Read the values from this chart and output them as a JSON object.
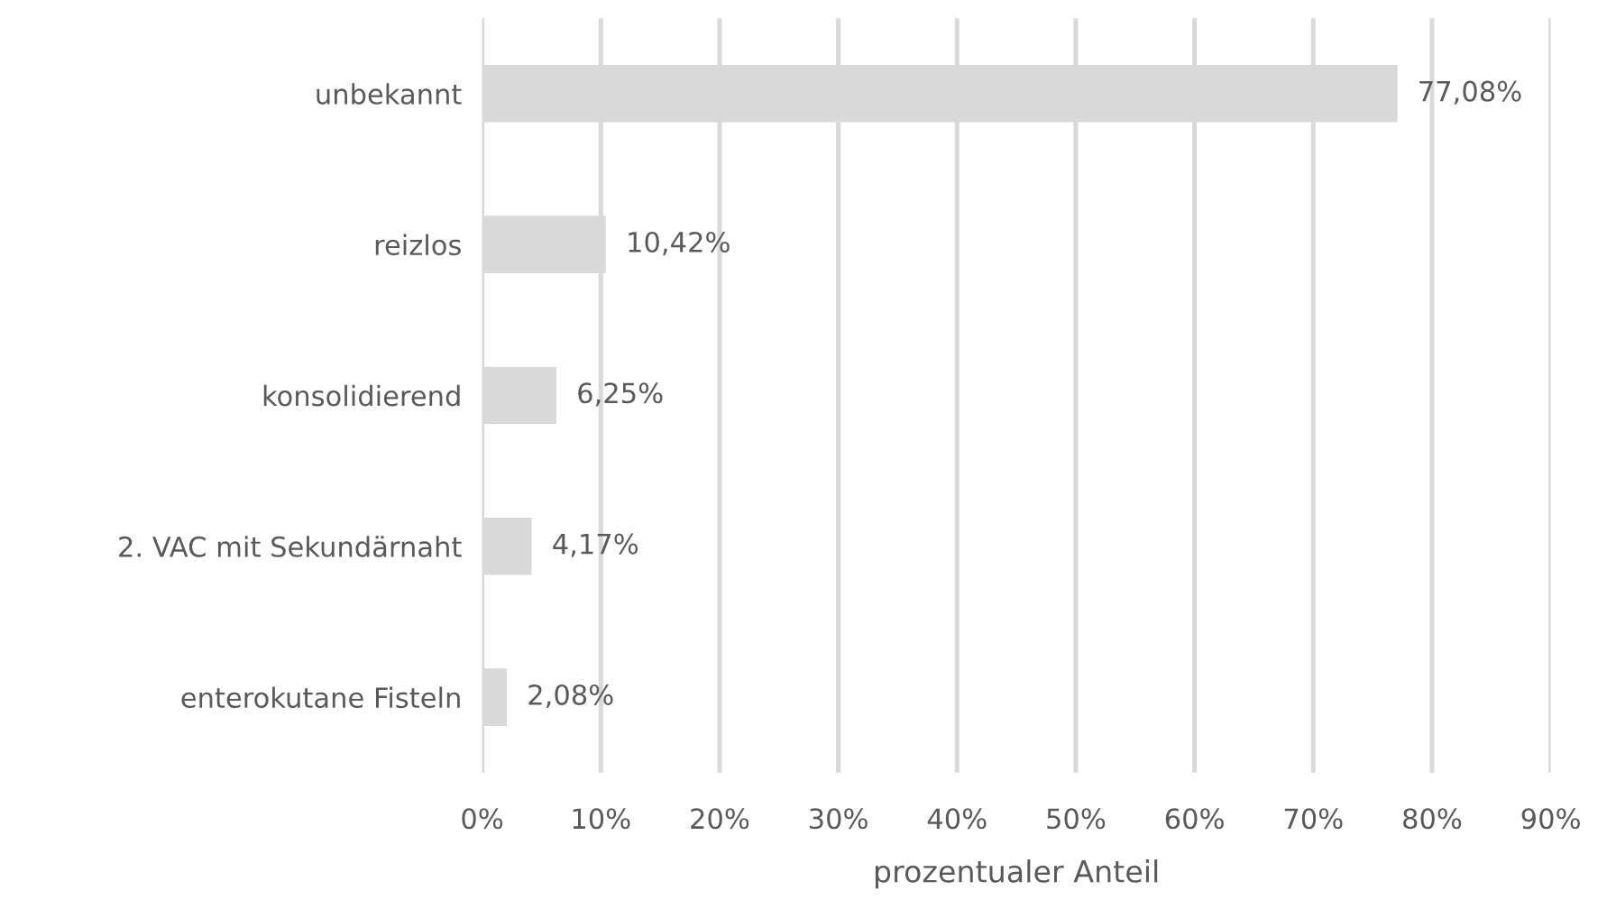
{
  "chart_data": {
    "type": "bar",
    "orientation": "horizontal",
    "xlabel": "prozentualer Anteil",
    "categories": [
      "unbekannt",
      "reizlos",
      "konsolidierend",
      "2. VAC mit Sekundärnaht",
      "enterokutane Fisteln"
    ],
    "values": [
      77.08,
      10.42,
      6.25,
      4.17,
      2.08
    ],
    "value_labels": [
      "77,08%",
      "10,42%",
      "6,25%",
      "4,17%",
      "2,08%"
    ],
    "color": "#d9d9d9",
    "xlim": [
      0,
      90
    ],
    "xticks": [
      {
        "value": 0,
        "label": "0%"
      },
      {
        "value": 10,
        "label": "10%"
      },
      {
        "value": 20,
        "label": "20%"
      },
      {
        "value": 30,
        "label": "30%"
      },
      {
        "value": 40,
        "label": "40%"
      },
      {
        "value": 50,
        "label": "50%"
      },
      {
        "value": 60,
        "label": "60%"
      },
      {
        "value": 70,
        "label": "70%"
      },
      {
        "value": 80,
        "label": "80%"
      },
      {
        "value": 90,
        "label": "90%"
      }
    ],
    "grid": "x"
  }
}
